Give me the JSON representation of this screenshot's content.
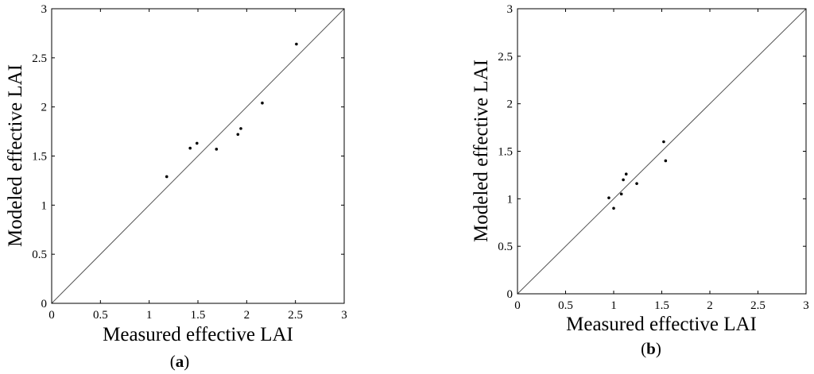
{
  "chart_data": [
    {
      "panel": "a",
      "type": "scatter",
      "xlabel": "Measured effective LAI",
      "ylabel": "Modeled effective LAI",
      "xlim": [
        0,
        3
      ],
      "ylim": [
        0,
        3
      ],
      "x_ticks": [
        "0",
        "0.5",
        "1",
        "1.5",
        "2",
        "2.5",
        "3"
      ],
      "y_ticks": [
        "0",
        "0.5",
        "1",
        "1.5",
        "2",
        "2.5",
        "3"
      ],
      "reference_line": "1:1",
      "grid": false,
      "points": [
        {
          "x": 1.18,
          "y": 1.29
        },
        {
          "x": 1.42,
          "y": 1.58
        },
        {
          "x": 1.49,
          "y": 1.63
        },
        {
          "x": 1.69,
          "y": 1.57
        },
        {
          "x": 1.91,
          "y": 1.72
        },
        {
          "x": 1.94,
          "y": 1.78
        },
        {
          "x": 2.16,
          "y": 2.04
        },
        {
          "x": 2.51,
          "y": 2.64
        }
      ]
    },
    {
      "panel": "b",
      "type": "scatter",
      "xlabel": "Measured effective LAI",
      "ylabel": "Modeled effective LAI",
      "xlim": [
        0,
        3
      ],
      "ylim": [
        0,
        3
      ],
      "x_ticks": [
        "0",
        "0.5",
        "1",
        "1.5",
        "2",
        "2.5",
        "3"
      ],
      "y_ticks": [
        "0",
        "0.5",
        "1",
        "1.5",
        "2",
        "2.5",
        "3"
      ],
      "reference_line": "1:1",
      "grid": false,
      "points": [
        {
          "x": 0.95,
          "y": 1.01
        },
        {
          "x": 1.0,
          "y": 0.9
        },
        {
          "x": 1.08,
          "y": 1.05
        },
        {
          "x": 1.1,
          "y": 1.2
        },
        {
          "x": 1.13,
          "y": 1.26
        },
        {
          "x": 1.24,
          "y": 1.16
        },
        {
          "x": 1.52,
          "y": 1.6
        },
        {
          "x": 1.54,
          "y": 1.4
        }
      ]
    }
  ],
  "captions": {
    "a": {
      "open": "(",
      "letter": "a",
      "close": ")"
    },
    "b": {
      "open": "(",
      "letter": "b",
      "close": ")"
    }
  }
}
